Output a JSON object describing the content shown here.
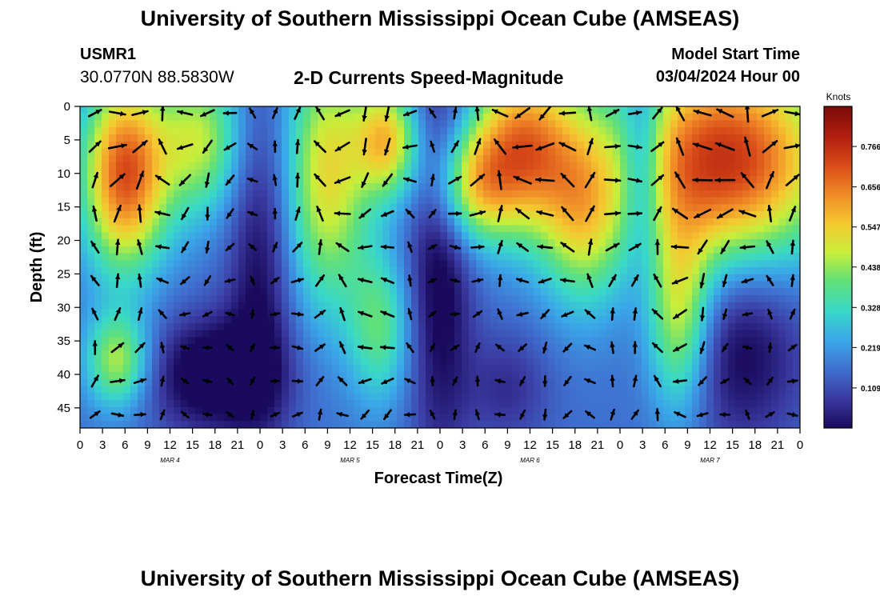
{
  "header": {
    "title": "University of Southern Mississippi Ocean Cube (AMSEAS)",
    "station": "USMR1",
    "coords": "30.0770N  88.5830W",
    "product": "2-D Currents Speed-Magnitude",
    "model_start_label": "Model Start Time",
    "model_start_value": "03/04/2024 Hour 00"
  },
  "footer": {
    "title": "University of Southern Mississippi Ocean Cube (AMSEAS)"
  },
  "chart_data": {
    "type": "heatmap",
    "xlabel": "Forecast Time(Z)",
    "ylabel": "Depth (ft)",
    "x_ticks": [
      "0",
      "3",
      "6",
      "9",
      "12",
      "15",
      "18",
      "21",
      "0",
      "3",
      "6",
      "9",
      "12",
      "15",
      "18",
      "21",
      "0",
      "3",
      "6",
      "9",
      "12",
      "15",
      "18",
      "21",
      "0",
      "3",
      "6",
      "9",
      "12",
      "15",
      "18",
      "21",
      "0"
    ],
    "date_labels": [
      "MAR 4",
      "MAR 5",
      "MAR 6",
      "MAR 7"
    ],
    "y_ticks": [
      "0",
      "5",
      "10",
      "15",
      "20",
      "25",
      "30",
      "35",
      "40",
      "45"
    ],
    "ylim": [
      0,
      48
    ],
    "x_range_hours": [
      0,
      96
    ],
    "colorbar": {
      "title": "Knots",
      "tick_labels": [
        "0.766",
        "0.656",
        "0.547",
        "0.438",
        "0.328",
        "0.219",
        "0.109"
      ],
      "tick_values": [
        0.766,
        0.656,
        0.547,
        0.438,
        0.328,
        0.219,
        0.109
      ],
      "range": [
        0,
        0.875
      ],
      "colors": [
        "#1a0a5e",
        "#3a3aa0",
        "#3f6fd0",
        "#3aa8e8",
        "#39d8c8",
        "#5fe07a",
        "#c8ee3a",
        "#f5c830",
        "#f08a28",
        "#d84a18",
        "#b01e10",
        "#7a0a06"
      ]
    }
  }
}
